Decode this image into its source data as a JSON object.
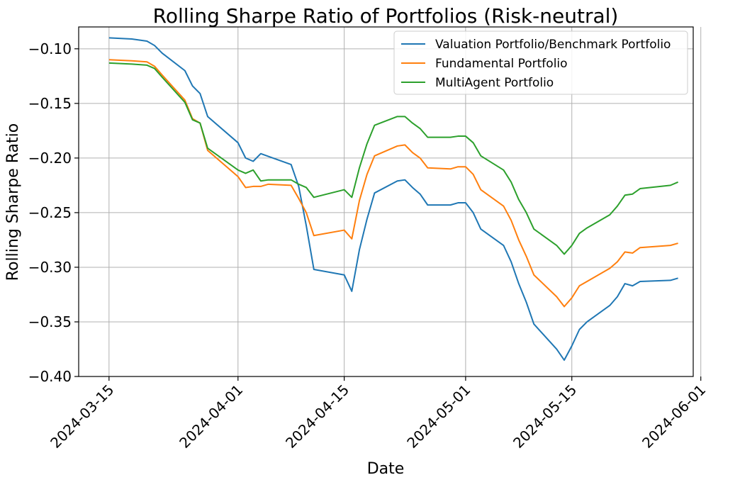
{
  "chart_data": {
    "type": "line",
    "title": "Rolling Sharpe Ratio of Portfolios (Risk-neutral)",
    "xlabel": "Date",
    "ylabel": "Rolling Sharpe Ratio",
    "xlim": [
      "2024-03-11",
      "2024-05-31"
    ],
    "ylim": [
      -0.4,
      -0.08
    ],
    "grid": true,
    "legend_position": "top-right",
    "x_ticks": [
      "2024-03-15",
      "2024-04-01",
      "2024-04-15",
      "2024-05-01",
      "2024-05-15",
      "2024-06-01"
    ],
    "y_ticks": [
      -0.1,
      -0.15,
      -0.2,
      -0.25,
      -0.3,
      -0.35,
      -0.4
    ],
    "y_tick_labels": [
      "−0.10",
      "−0.15",
      "−0.20",
      "−0.25",
      "−0.30",
      "−0.35",
      "−0.40"
    ],
    "series": [
      {
        "name": "Valuation Portfolio/Benchmark Portfolio",
        "color": "#1f77b4",
        "points": [
          [
            "2024-03-15",
            -0.09
          ],
          [
            "2024-03-18",
            -0.091
          ],
          [
            "2024-03-20",
            -0.093
          ],
          [
            "2024-03-21",
            -0.097
          ],
          [
            "2024-03-22",
            -0.104
          ],
          [
            "2024-03-25",
            -0.12
          ],
          [
            "2024-03-26",
            -0.134
          ],
          [
            "2024-03-27",
            -0.141
          ],
          [
            "2024-03-28",
            -0.162
          ],
          [
            "2024-04-01",
            -0.186
          ],
          [
            "2024-04-02",
            -0.2
          ],
          [
            "2024-04-03",
            -0.203
          ],
          [
            "2024-04-04",
            -0.196
          ],
          [
            "2024-04-08",
            -0.206
          ],
          [
            "2024-04-09",
            -0.226
          ],
          [
            "2024-04-10",
            -0.262
          ],
          [
            "2024-04-11",
            -0.302
          ],
          [
            "2024-04-15",
            -0.307
          ],
          [
            "2024-04-16",
            -0.322
          ],
          [
            "2024-04-17",
            -0.284
          ],
          [
            "2024-04-18",
            -0.256
          ],
          [
            "2024-04-19",
            -0.232
          ],
          [
            "2024-04-22",
            -0.221
          ],
          [
            "2024-04-23",
            -0.22
          ],
          [
            "2024-04-24",
            -0.227
          ],
          [
            "2024-04-25",
            -0.233
          ],
          [
            "2024-04-26",
            -0.243
          ],
          [
            "2024-04-29",
            -0.243
          ],
          [
            "2024-04-30",
            -0.241
          ],
          [
            "2024-05-01",
            -0.241
          ],
          [
            "2024-05-02",
            -0.25
          ],
          [
            "2024-05-03",
            -0.265
          ],
          [
            "2024-05-06",
            -0.28
          ],
          [
            "2024-05-07",
            -0.295
          ],
          [
            "2024-05-08",
            -0.315
          ],
          [
            "2024-05-09",
            -0.332
          ],
          [
            "2024-05-10",
            -0.352
          ],
          [
            "2024-05-13",
            -0.375
          ],
          [
            "2024-05-14",
            -0.385
          ],
          [
            "2024-05-15",
            -0.372
          ],
          [
            "2024-05-16",
            -0.357
          ],
          [
            "2024-05-17",
            -0.35
          ],
          [
            "2024-05-20",
            -0.335
          ],
          [
            "2024-05-21",
            -0.327
          ],
          [
            "2024-05-22",
            -0.315
          ],
          [
            "2024-05-23",
            -0.317
          ],
          [
            "2024-05-24",
            -0.313
          ],
          [
            "2024-05-28",
            -0.312
          ],
          [
            "2024-05-29",
            -0.31
          ]
        ]
      },
      {
        "name": "Fundamental Portfolio",
        "color": "#ff7f0e",
        "points": [
          [
            "2024-03-15",
            -0.11
          ],
          [
            "2024-03-18",
            -0.111
          ],
          [
            "2024-03-20",
            -0.112
          ],
          [
            "2024-03-21",
            -0.116
          ],
          [
            "2024-03-22",
            -0.124
          ],
          [
            "2024-03-25",
            -0.147
          ],
          [
            "2024-03-26",
            -0.164
          ],
          [
            "2024-03-27",
            -0.168
          ],
          [
            "2024-03-28",
            -0.193
          ],
          [
            "2024-04-01",
            -0.217
          ],
          [
            "2024-04-02",
            -0.227
          ],
          [
            "2024-04-03",
            -0.226
          ],
          [
            "2024-04-04",
            -0.226
          ],
          [
            "2024-04-05",
            -0.224
          ],
          [
            "2024-04-08",
            -0.225
          ],
          [
            "2024-04-09",
            -0.237
          ],
          [
            "2024-04-10",
            -0.25
          ],
          [
            "2024-04-11",
            -0.271
          ],
          [
            "2024-04-15",
            -0.266
          ],
          [
            "2024-04-16",
            -0.274
          ],
          [
            "2024-04-17",
            -0.239
          ],
          [
            "2024-04-18",
            -0.215
          ],
          [
            "2024-04-19",
            -0.198
          ],
          [
            "2024-04-22",
            -0.189
          ],
          [
            "2024-04-23",
            -0.188
          ],
          [
            "2024-04-24",
            -0.195
          ],
          [
            "2024-04-25",
            -0.2
          ],
          [
            "2024-04-26",
            -0.209
          ],
          [
            "2024-04-29",
            -0.21
          ],
          [
            "2024-04-30",
            -0.208
          ],
          [
            "2024-05-01",
            -0.208
          ],
          [
            "2024-05-02",
            -0.215
          ],
          [
            "2024-05-03",
            -0.229
          ],
          [
            "2024-05-06",
            -0.244
          ],
          [
            "2024-05-07",
            -0.257
          ],
          [
            "2024-05-08",
            -0.275
          ],
          [
            "2024-05-09",
            -0.29
          ],
          [
            "2024-05-10",
            -0.307
          ],
          [
            "2024-05-13",
            -0.327
          ],
          [
            "2024-05-14",
            -0.336
          ],
          [
            "2024-05-15",
            -0.328
          ],
          [
            "2024-05-16",
            -0.317
          ],
          [
            "2024-05-17",
            -0.313
          ],
          [
            "2024-05-20",
            -0.301
          ],
          [
            "2024-05-21",
            -0.295
          ],
          [
            "2024-05-22",
            -0.286
          ],
          [
            "2024-05-23",
            -0.287
          ],
          [
            "2024-05-24",
            -0.282
          ],
          [
            "2024-05-28",
            -0.28
          ],
          [
            "2024-05-29",
            -0.278
          ]
        ]
      },
      {
        "name": "MultiAgent Portfolio",
        "color": "#2ca02c",
        "points": [
          [
            "2024-03-15",
            -0.113
          ],
          [
            "2024-03-18",
            -0.114
          ],
          [
            "2024-03-20",
            -0.115
          ],
          [
            "2024-03-21",
            -0.118
          ],
          [
            "2024-03-22",
            -0.126
          ],
          [
            "2024-03-25",
            -0.149
          ],
          [
            "2024-03-26",
            -0.165
          ],
          [
            "2024-03-27",
            -0.168
          ],
          [
            "2024-03-28",
            -0.191
          ],
          [
            "2024-04-01",
            -0.211
          ],
          [
            "2024-04-02",
            -0.214
          ],
          [
            "2024-04-03",
            -0.211
          ],
          [
            "2024-04-04",
            -0.221
          ],
          [
            "2024-04-05",
            -0.22
          ],
          [
            "2024-04-08",
            -0.22
          ],
          [
            "2024-04-09",
            -0.224
          ],
          [
            "2024-04-10",
            -0.227
          ],
          [
            "2024-04-11",
            -0.236
          ],
          [
            "2024-04-15",
            -0.229
          ],
          [
            "2024-04-16",
            -0.236
          ],
          [
            "2024-04-17",
            -0.209
          ],
          [
            "2024-04-18",
            -0.187
          ],
          [
            "2024-04-19",
            -0.17
          ],
          [
            "2024-04-22",
            -0.162
          ],
          [
            "2024-04-23",
            -0.162
          ],
          [
            "2024-04-24",
            -0.168
          ],
          [
            "2024-04-25",
            -0.173
          ],
          [
            "2024-04-26",
            -0.181
          ],
          [
            "2024-04-29",
            -0.181
          ],
          [
            "2024-04-30",
            -0.18
          ],
          [
            "2024-05-01",
            -0.18
          ],
          [
            "2024-05-02",
            -0.186
          ],
          [
            "2024-05-03",
            -0.198
          ],
          [
            "2024-05-06",
            -0.211
          ],
          [
            "2024-05-07",
            -0.222
          ],
          [
            "2024-05-08",
            -0.238
          ],
          [
            "2024-05-09",
            -0.25
          ],
          [
            "2024-05-10",
            -0.265
          ],
          [
            "2024-05-13",
            -0.28
          ],
          [
            "2024-05-14",
            -0.288
          ],
          [
            "2024-05-15",
            -0.28
          ],
          [
            "2024-05-16",
            -0.269
          ],
          [
            "2024-05-17",
            -0.264
          ],
          [
            "2024-05-20",
            -0.252
          ],
          [
            "2024-05-21",
            -0.244
          ],
          [
            "2024-05-22",
            -0.234
          ],
          [
            "2024-05-23",
            -0.233
          ],
          [
            "2024-05-24",
            -0.228
          ],
          [
            "2024-05-28",
            -0.225
          ],
          [
            "2024-05-29",
            -0.222
          ]
        ]
      }
    ]
  }
}
